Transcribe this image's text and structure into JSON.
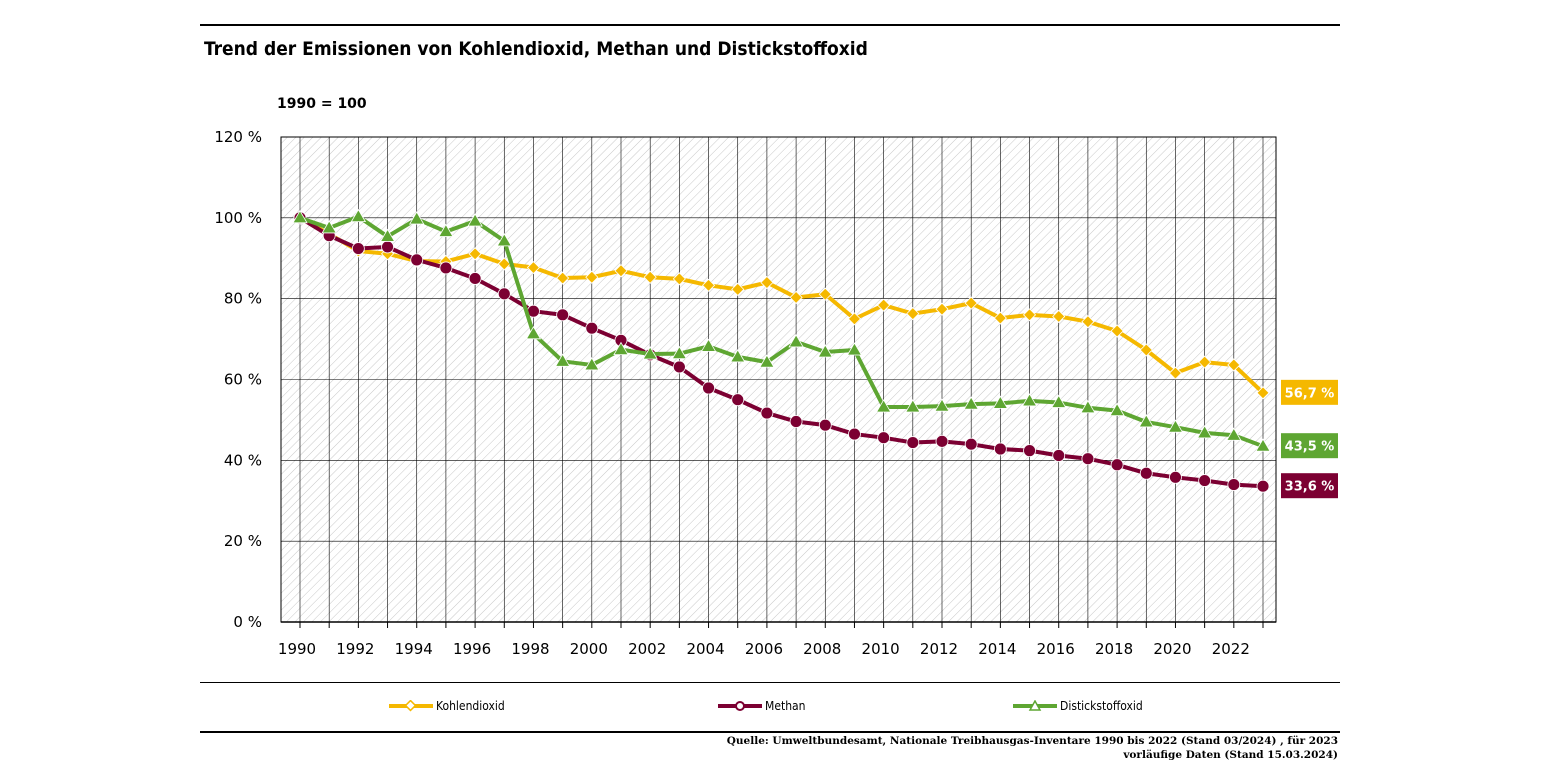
{
  "title": "Trend der Emissionen von Kohlendioxid, Methan und Distickstoffoxid",
  "subtitle": "1990 = 100",
  "source_line1": "Quelle: Umweltbundesamt, Nationale Treibhausgas-Inventare 1990 bis 2022 (Stand 03/2024) , für 2023",
  "source_line2": "vorläufige Daten (Stand 15.03.2024)",
  "chart_data": {
    "type": "line",
    "title": "Trend der Emissionen von Kohlendioxid, Methan und Distickstoffoxid",
    "ylabel": "1990 = 100",
    "xlabel": "",
    "x": [
      1990,
      1991,
      1992,
      1993,
      1994,
      1995,
      1996,
      1997,
      1998,
      1999,
      2000,
      2001,
      2002,
      2003,
      2004,
      2005,
      2006,
      2007,
      2008,
      2009,
      2010,
      2011,
      2012,
      2013,
      2014,
      2015,
      2016,
      2017,
      2018,
      2019,
      2020,
      2021,
      2022,
      2023
    ],
    "xticks": [
      "1990",
      "1992",
      "1994",
      "1996",
      "1998",
      "2000",
      "2002",
      "2004",
      "2006",
      "2008",
      "2010",
      "2012",
      "2014",
      "2016",
      "2018",
      "2020",
      "2022"
    ],
    "xlim": [
      1990,
      2023
    ],
    "ylim": [
      0,
      120
    ],
    "yticks": [
      "0 %",
      "20 %",
      "40 %",
      "60 %",
      "80 %",
      "100 %",
      "120 %"
    ],
    "grid": true,
    "legend_position": "bottom",
    "series": [
      {
        "name": "Kohlendioxid",
        "color": "#f5b800",
        "marker": "diamond",
        "end_label": "56,7 %",
        "values": [
          100,
          96.0,
          91.8,
          91.1,
          89.3,
          89.2,
          91.1,
          88.6,
          87.7,
          85.1,
          85.3,
          86.9,
          85.3,
          84.9,
          83.3,
          82.3,
          84.0,
          80.3,
          81.1,
          75.0,
          78.4,
          76.3,
          77.4,
          78.9,
          75.2,
          76.0,
          75.6,
          74.3,
          72.0,
          67.3,
          61.6,
          64.3,
          63.6,
          56.7
        ]
      },
      {
        "name": "Methan",
        "color": "#7c0032",
        "marker": "circle",
        "end_label": "33,6 %",
        "values": [
          100,
          95.6,
          92.4,
          92.8,
          89.6,
          87.6,
          85.0,
          81.2,
          76.9,
          76.0,
          72.7,
          69.7,
          66.1,
          63.1,
          57.9,
          55.0,
          51.7,
          49.6,
          48.7,
          46.5,
          45.6,
          44.4,
          44.7,
          44.0,
          42.8,
          42.4,
          41.2,
          40.4,
          38.9,
          36.8,
          35.8,
          35.0,
          34.0,
          33.6
        ]
      },
      {
        "name": "Distickstoffoxid",
        "color": "#5ea632",
        "marker": "triangle",
        "end_label": "43,5 %",
        "values": [
          100,
          97.5,
          100.3,
          95.4,
          99.7,
          96.6,
          99.2,
          94.3,
          71.3,
          64.5,
          63.6,
          67.4,
          66.3,
          66.4,
          68.2,
          65.6,
          64.3,
          69.3,
          66.8,
          67.3,
          53.2,
          53.2,
          53.4,
          53.9,
          54.1,
          54.7,
          54.3,
          53.0,
          52.3,
          49.5,
          48.2,
          46.8,
          46.2,
          43.5
        ]
      }
    ]
  }
}
